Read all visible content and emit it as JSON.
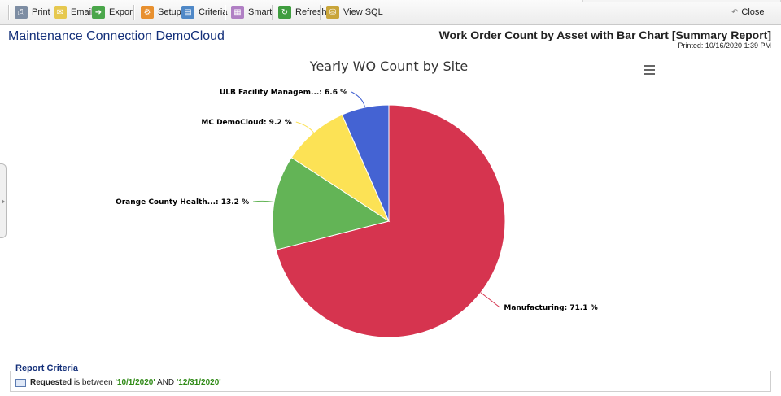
{
  "toolbar": {
    "print_label": "Print",
    "email_label": "Email",
    "export_label": "Export",
    "setup_label": "Setup",
    "criteria_label": "Criteria",
    "smart_label": "Smart",
    "refresh_label": "Refresh",
    "view_sql_label": "View SQL",
    "close_label": "Close"
  },
  "header": {
    "app_title": "Maintenance Connection DemoCloud",
    "report_title": "Work Order Count by Asset with Bar Chart [Summary Report]",
    "printed": "Printed: 10/16/2020  1:39 PM"
  },
  "chart_data": {
    "type": "pie",
    "title": "Yearly WO Count by Site",
    "slices": [
      {
        "label": "Manufacturing: 71.1 %",
        "name": "Manufacturing",
        "value": 71.1,
        "color": "#d6344f"
      },
      {
        "label": "Orange County Health...: 13.2 %",
        "name": "Orange County Health...",
        "value": 13.2,
        "color": "#63b456"
      },
      {
        "label": "MC DemoCloud: 9.2 %",
        "name": "MC DemoCloud",
        "value": 9.2,
        "color": "#fce255"
      },
      {
        "label": "ULB Facility Managem...: 6.6 %",
        "name": "ULB Facility Managem...",
        "value": 6.6,
        "color": "#4463d3"
      }
    ]
  },
  "criteria": {
    "heading": "Report Criteria",
    "field": "Requested",
    "text_between": " is between ",
    "start": "'10/1/2020'",
    "text_and": " AND ",
    "end": "'12/31/2020'"
  }
}
